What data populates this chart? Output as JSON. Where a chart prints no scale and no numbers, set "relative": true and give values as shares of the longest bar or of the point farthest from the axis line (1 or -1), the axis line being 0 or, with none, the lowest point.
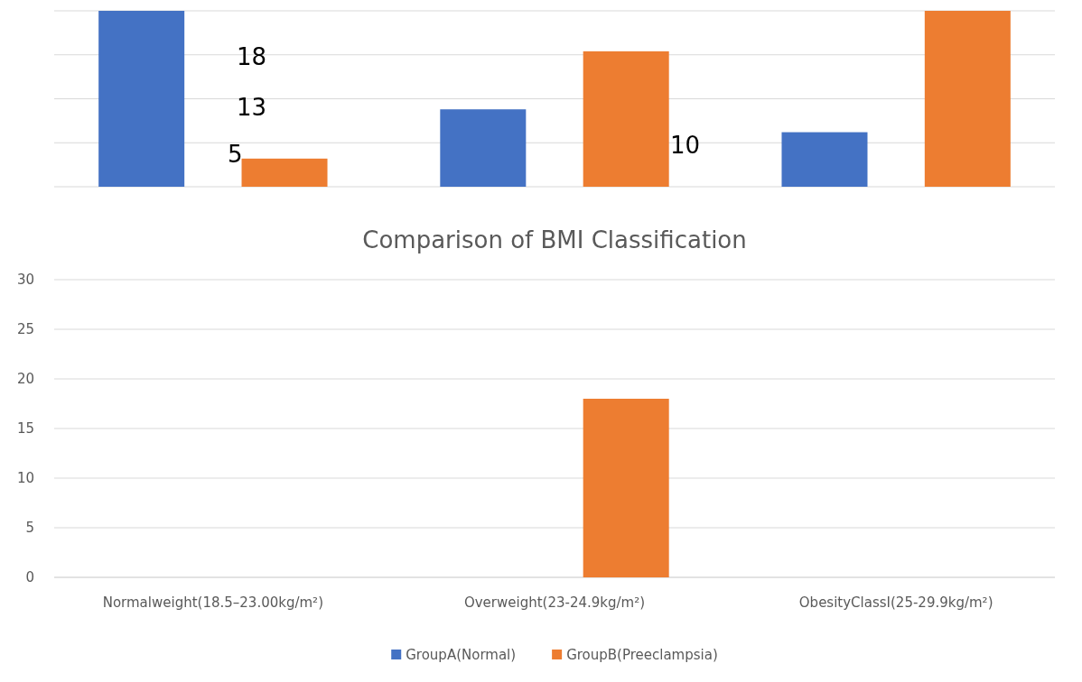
{
  "chart_data": [
    {
      "type": "bar",
      "relative": true,
      "categories": [
        null,
        null,
        null
      ],
      "series": [
        {
          "color": "#4472c4",
          "values": [
            1,
            0.44,
            0.31
          ]
        },
        {
          "color": "#ed7d31",
          "values": [
            0.16,
            0.77,
            1
          ]
        }
      ],
      "annotations": [
        "18",
        "13",
        "10",
        "5"
      ],
      "grid": true
    },
    {
      "type": "bar",
      "title": "Comparison of BMI Classification",
      "categories": [
        "Normalweight(18.5–23.00kg/m²)",
        "Overweight(23-24.9kg/m²)",
        "ObesityClassI(25-29.9kg/m²)"
      ],
      "series": [
        {
          "name": "GroupA(Normal)",
          "color": "#4472c4",
          "values": [
            0,
            0,
            0
          ]
        },
        {
          "name": "GroupB(Preeclampsia)",
          "color": "#ed7d31",
          "values": [
            0,
            18,
            0
          ]
        }
      ],
      "ylim": [
        0,
        30
      ],
      "yticks": [
        0,
        5,
        10,
        15,
        20,
        25,
        30
      ],
      "grid": true,
      "legend": "bottom"
    }
  ]
}
